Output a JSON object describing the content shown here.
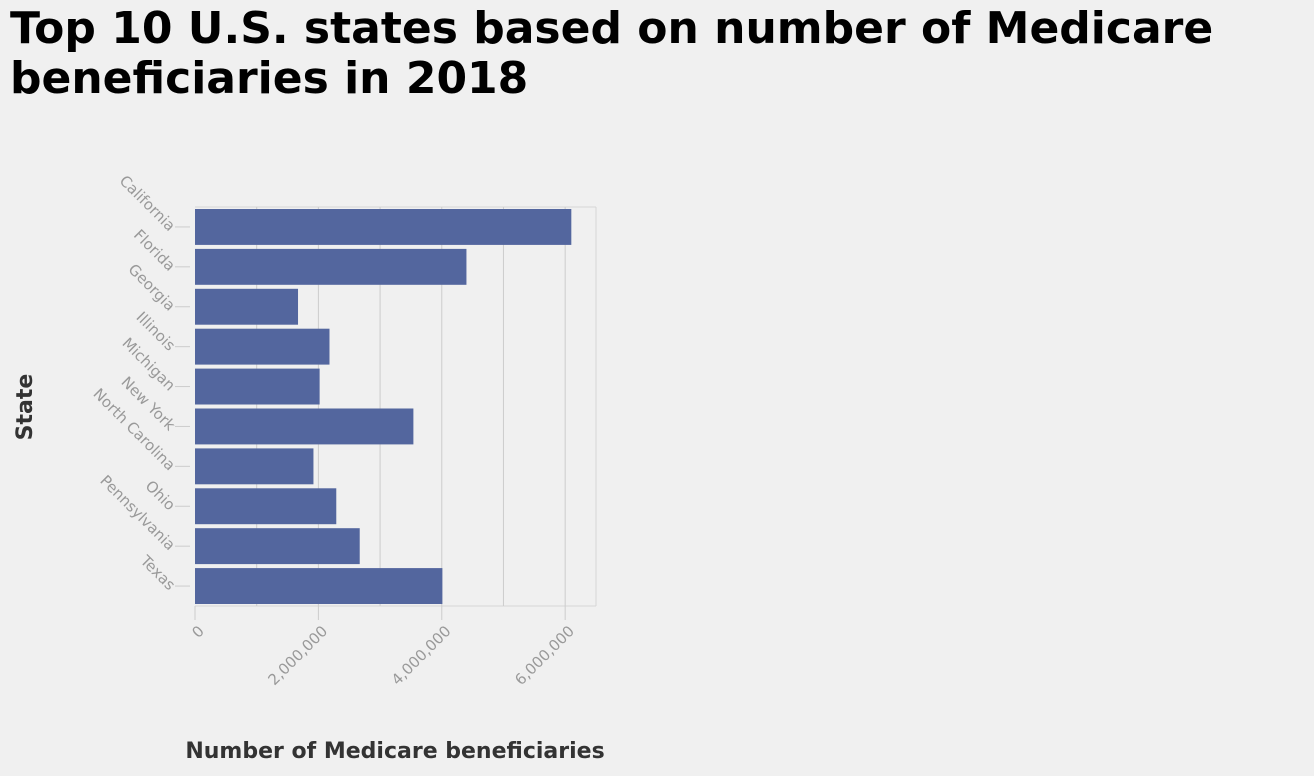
{
  "chart_data": {
    "type": "bar",
    "orientation": "horizontal",
    "title": "Top 10 U.S. states based on number of Medicare beneficiaries in 2018",
    "xlabel": "Number of Medicare beneficiaries",
    "ylabel": "State",
    "categories": [
      "California",
      "Florida",
      "Georgia",
      "Illinois",
      "Michigan",
      "New York",
      "North Carolina",
      "Ohio",
      "Pennsylvania",
      "Texas"
    ],
    "values": [
      6100000,
      4400000,
      1670000,
      2180000,
      2020000,
      3540000,
      1920000,
      2290000,
      2670000,
      4010000
    ],
    "xlim": [
      0,
      6500000
    ],
    "xticks": [
      0,
      2000000,
      4000000,
      6000000
    ],
    "xtick_labels": [
      "0",
      "2,000,000",
      "4,000,000",
      "6,000,000"
    ],
    "grid": true,
    "bar_color": "#53669e"
  }
}
